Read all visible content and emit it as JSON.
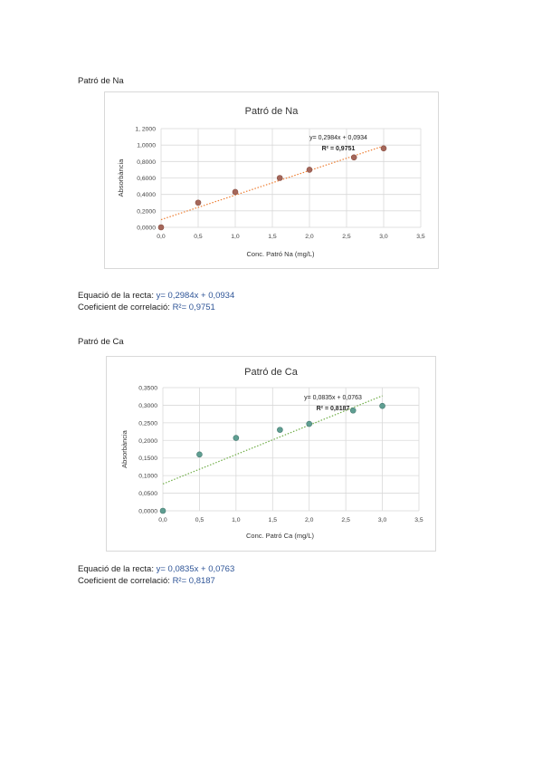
{
  "sections": [
    {
      "heading": "Patró de Na",
      "equation_label": "Equació de la recta:",
      "equation_value": "y= 0,2984x + 0,0934",
      "correlation_label": "Coeficient de correlació:",
      "correlation_value": "R²= 0,9751"
    },
    {
      "heading": "Patró de Ca",
      "equation_label": "Equació de la recta:",
      "equation_value": "y= 0,0835x + 0,0763",
      "correlation_label": "Coeficient de correlació:",
      "correlation_value": "R²= 0,8187"
    }
  ],
  "chart_data": [
    {
      "type": "scatter",
      "title": "Patró de Na",
      "xlabel": "Conc. Patró Na (mg/L)",
      "ylabel": "Absorbància",
      "xlim": [
        0,
        3.5
      ],
      "ylim": [
        0,
        1.2
      ],
      "x_ticks": [
        "0,0",
        "0,5",
        "1,0",
        "1,5",
        "2,0",
        "2,5",
        "3,0",
        "3,5"
      ],
      "y_ticks": [
        "0,0000",
        "0,2000",
        "0,4000",
        "0,6000",
        "0,8000",
        "1,0000",
        "1, 2000"
      ],
      "grid": true,
      "point_color": "#a5675a",
      "point_stroke": "#8a4f43",
      "trendline_color": "#ed7d31",
      "trendline": {
        "slope": 0.2984,
        "intercept": 0.0934
      },
      "annotation_equation": "y= 0,2984x + 0,0934",
      "annotation_r2": "R² = 0,9751",
      "series": [
        {
          "x": [
            0,
            0.5,
            1.0,
            1.6,
            2.0,
            2.6,
            3.0
          ],
          "y": [
            0.0,
            0.3,
            0.43,
            0.6,
            0.7,
            0.85,
            0.96
          ]
        }
      ]
    },
    {
      "type": "scatter",
      "title": "Patró de Ca",
      "xlabel": "Conc. Patró Ca (mg/L)",
      "ylabel": "Absorbància",
      "xlim": [
        0,
        3.5
      ],
      "ylim": [
        0,
        0.35
      ],
      "x_ticks": [
        "0,0",
        "0,5",
        "1,0",
        "1,5",
        "2,0",
        "2,5",
        "3,0",
        "3,5"
      ],
      "y_ticks": [
        "0,0000",
        "0,0500",
        "0,1000",
        "0,1500",
        "0,2000",
        "0,2500",
        "0,3000",
        "0,3500"
      ],
      "grid": true,
      "point_color": "#5f9e92",
      "point_stroke": "#467a70",
      "trendline_color": "#70ad47",
      "trendline": {
        "slope": 0.0835,
        "intercept": 0.0763
      },
      "annotation_equation": "y= 0,0835x + 0,0763",
      "annotation_r2": "R² = 0,8187",
      "series": [
        {
          "x": [
            0,
            0.5,
            1.0,
            1.6,
            2.0,
            2.6,
            3.0
          ],
          "y": [
            0.0,
            0.16,
            0.207,
            0.23,
            0.247,
            0.285,
            0.298
          ]
        }
      ]
    }
  ]
}
